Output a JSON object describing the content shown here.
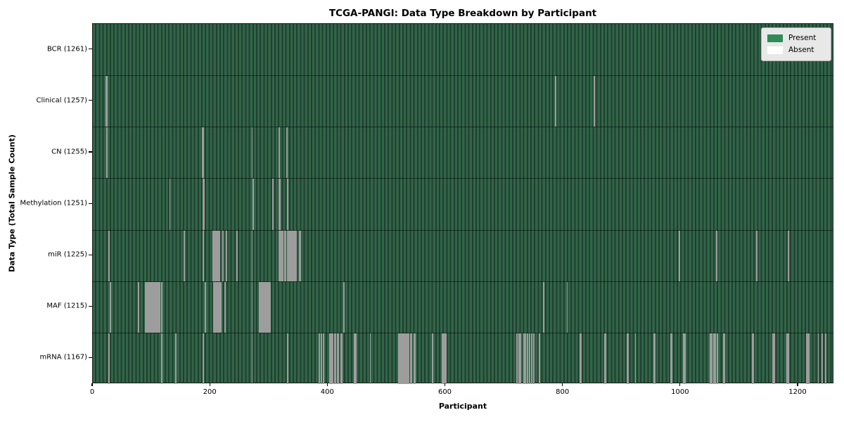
{
  "chart_data": {
    "type": "heatmap",
    "title": "TCGA-PANGI: Data Type Breakdown by Participant",
    "xlabel": "Participant",
    "ylabel": "Data Type (Total Sample Count)",
    "legend": {
      "present": "Present",
      "absent": "Absent"
    },
    "legend_position": "upper right",
    "n_participants": 1261,
    "x_ticks": [
      0,
      200,
      400,
      600,
      800,
      1000,
      1200
    ],
    "colors": {
      "present": "#2e8b57",
      "present_fill_light": "#31654a",
      "present_fill_dark": "#213f2e",
      "absent": "#ffffff",
      "absent_rendered_gray": "#9d9d9d",
      "legend_bg": "#e8e8e8"
    },
    "rows": [
      {
        "name": "BCR",
        "label": "BCR (1261)",
        "total": 1261,
        "absent_participants": []
      },
      {
        "name": "Clinical",
        "label": "Clinical (1257)",
        "total": 1257,
        "absent_participants": [
          22,
          23,
          786,
          852
        ]
      },
      {
        "name": "CN",
        "label": "CN (1255)",
        "total": 1255,
        "absent_participants": [
          23,
          186,
          187,
          270,
          316,
          329
        ]
      },
      {
        "name": "Methylation",
        "label": "Methylation (1251)",
        "total": 1251,
        "absent_participants": [
          130,
          187,
          188,
          271,
          272,
          305,
          316,
          317,
          330,
          331
        ]
      },
      {
        "name": "miR",
        "label": "miR (1225)",
        "total": 1225,
        "absent_participants": [
          26,
          154,
          187,
          203,
          204,
          205,
          206,
          208,
          210,
          212,
          214,
          220,
          226,
          244,
          270,
          316,
          318,
          320,
          322,
          325,
          327,
          330,
          333,
          335,
          336,
          338,
          340,
          342,
          343,
          345,
          350,
          352,
          997,
          1060,
          1128,
          1182
        ]
      },
      {
        "name": "MAF",
        "label": "MAF (1215)",
        "total": 1215,
        "absent_participants": [
          29,
          77,
          89,
          91,
          93,
          95,
          97,
          99,
          101,
          103,
          105,
          107,
          109,
          111,
          112,
          113,
          116,
          190,
          205,
          206,
          207,
          208,
          209,
          210,
          211,
          212,
          213,
          214,
          215,
          216,
          217,
          224,
          270,
          282,
          284,
          286,
          288,
          290,
          292,
          294,
          296,
          298,
          300,
          426,
          766,
          806
        ]
      },
      {
        "name": "mRNA",
        "label": "mRNA (1167)",
        "total": 1167,
        "absent_participants": [
          26,
          116,
          140,
          187,
          270,
          330,
          384,
          388,
          391,
          402,
          403,
          405,
          407,
          410,
          412,
          415,
          417,
          421,
          423,
          444,
          446,
          471,
          519,
          520,
          521,
          523,
          524,
          525,
          527,
          528,
          529,
          530,
          532,
          534,
          536,
          539,
          540,
          541,
          545,
          546,
          547,
          577,
          593,
          594,
          596,
          598,
          600,
          720,
          721,
          724,
          726,
          732,
          733,
          735,
          738,
          739,
          742,
          745,
          746,
          749,
          758,
          759,
          828,
          829,
          870,
          871,
          908,
          910,
          922,
          953,
          955,
          982,
          984,
          1004,
          1006,
          1049,
          1052,
          1055,
          1058,
          1061,
          1072,
          1074,
          1121,
          1123,
          1156,
          1158,
          1180,
          1182,
          1213,
          1215,
          1217,
          1233,
          1240,
          1246
        ]
      }
    ]
  }
}
